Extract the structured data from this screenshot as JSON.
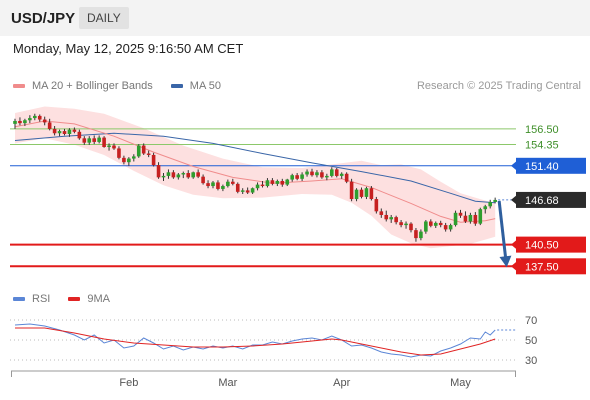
{
  "header": {
    "symbol": "USD/JPY",
    "timeframe": "DAILY"
  },
  "datetime": "Monday, May 12, 2025 9:16:50 AM CET",
  "legend_top": [
    {
      "label": "MA 20 + Bollinger Bands",
      "color": "#f08c8c"
    },
    {
      "label": "MA 50",
      "color": "#3a66a8"
    }
  ],
  "credit": "Research © 2025 Trading Central",
  "legend_bottom": [
    {
      "label": "RSI",
      "color": "#5b86d6"
    },
    {
      "label": "9MA",
      "color": "#e02424"
    }
  ],
  "colors": {
    "up": "#2e9e2e",
    "down": "#c62020",
    "resistance": "#1f5fd6",
    "support": "#e21a1a",
    "green_level": "#8cc86a",
    "arrow": "#2f5f9e"
  },
  "chart_data": [
    {
      "type": "candlestick",
      "ylim": [
        134.5,
        160.5
      ],
      "x_ticks": [
        "Feb",
        "Mar",
        "Apr",
        "May"
      ],
      "x_tick_index": [
        23,
        43,
        66,
        90
      ],
      "levels": [
        {
          "label": "156.50",
          "value": 156.5,
          "style": "green"
        },
        {
          "label": "154.35",
          "value": 154.35,
          "style": "green"
        },
        {
          "label": "151.40",
          "value": 151.4,
          "style": "resistance"
        },
        {
          "label": "146.68",
          "value": 146.68,
          "style": "last"
        },
        {
          "label": "140.50",
          "value": 140.5,
          "style": "support"
        },
        {
          "label": "137.50",
          "value": 137.5,
          "style": "support"
        }
      ],
      "ohlc": [
        [
          157.2,
          157.9,
          156.5,
          157.6
        ],
        [
          157.6,
          158.1,
          157.0,
          157.3
        ],
        [
          157.3,
          157.9,
          156.9,
          157.7
        ],
        [
          157.7,
          158.4,
          157.3,
          158.0
        ],
        [
          158.0,
          158.6,
          157.7,
          158.3
        ],
        [
          158.3,
          158.5,
          157.5,
          157.8
        ],
        [
          157.8,
          158.2,
          157.0,
          157.4
        ],
        [
          157.4,
          157.9,
          156.3,
          156.5
        ],
        [
          156.5,
          156.9,
          155.6,
          155.9
        ],
        [
          155.9,
          156.4,
          155.5,
          156.2
        ],
        [
          156.2,
          156.5,
          155.6,
          155.8
        ],
        [
          155.8,
          156.6,
          155.4,
          156.4
        ],
        [
          156.4,
          156.7,
          155.9,
          156.1
        ],
        [
          156.1,
          156.4,
          155.0,
          155.2
        ],
        [
          155.2,
          155.5,
          154.3,
          154.6
        ],
        [
          154.6,
          155.5,
          154.3,
          155.2
        ],
        [
          155.2,
          155.6,
          154.4,
          154.7
        ],
        [
          154.7,
          155.6,
          154.5,
          155.3
        ],
        [
          155.3,
          155.5,
          153.9,
          154.0
        ],
        [
          154.0,
          154.5,
          153.5,
          154.2
        ],
        [
          154.2,
          154.5,
          153.6,
          153.8
        ],
        [
          153.8,
          154.1,
          152.3,
          152.5
        ],
        [
          152.5,
          152.8,
          151.6,
          151.9
        ],
        [
          151.9,
          152.6,
          151.4,
          152.4
        ],
        [
          152.4,
          153.0,
          152.0,
          152.7
        ],
        [
          152.7,
          154.4,
          152.5,
          154.2
        ],
        [
          154.2,
          154.5,
          152.9,
          153.1
        ],
        [
          153.1,
          153.5,
          152.6,
          152.9
        ],
        [
          152.9,
          153.2,
          151.3,
          151.5
        ],
        [
          151.5,
          151.9,
          149.6,
          149.8
        ],
        [
          149.8,
          150.4,
          149.3,
          150.0
        ],
        [
          150.0,
          150.9,
          149.6,
          150.5
        ],
        [
          150.5,
          150.8,
          149.6,
          149.8
        ],
        [
          149.8,
          150.4,
          149.5,
          150.2
        ],
        [
          150.2,
          150.6,
          149.7,
          150.4
        ],
        [
          150.4,
          150.8,
          149.6,
          149.8
        ],
        [
          149.8,
          150.6,
          149.6,
          150.5
        ],
        [
          150.5,
          150.9,
          149.7,
          149.9
        ],
        [
          149.9,
          150.2,
          148.8,
          149.0
        ],
        [
          149.0,
          149.4,
          148.3,
          148.6
        ],
        [
          148.6,
          149.3,
          148.3,
          149.1
        ],
        [
          149.1,
          149.4,
          148.0,
          148.2
        ],
        [
          148.2,
          148.8,
          147.9,
          148.6
        ],
        [
          148.6,
          149.5,
          148.4,
          149.2
        ],
        [
          149.2,
          149.6,
          148.7,
          148.9
        ],
        [
          148.9,
          149.1,
          147.6,
          147.8
        ],
        [
          147.8,
          148.3,
          147.5,
          148.0
        ],
        [
          148.0,
          148.4,
          147.5,
          147.7
        ],
        [
          147.7,
          148.4,
          147.5,
          148.3
        ],
        [
          148.3,
          149.1,
          148.0,
          148.8
        ],
        [
          148.8,
          149.3,
          148.4,
          148.6
        ],
        [
          148.6,
          149.7,
          148.4,
          149.4
        ],
        [
          149.4,
          149.7,
          148.7,
          148.9
        ],
        [
          148.9,
          149.5,
          148.6,
          149.3
        ],
        [
          149.3,
          149.6,
          148.5,
          148.8
        ],
        [
          148.8,
          149.6,
          148.6,
          149.5
        ],
        [
          149.5,
          150.3,
          149.2,
          150.1
        ],
        [
          150.1,
          150.4,
          149.4,
          149.6
        ],
        [
          149.6,
          150.5,
          149.3,
          150.2
        ],
        [
          150.2,
          150.9,
          149.9,
          150.6
        ],
        [
          150.6,
          151.0,
          149.9,
          150.1
        ],
        [
          150.1,
          150.8,
          149.8,
          150.5
        ],
        [
          150.5,
          150.8,
          149.6,
          149.8
        ],
        [
          149.8,
          150.3,
          149.4,
          150.0
        ],
        [
          150.0,
          151.2,
          149.8,
          150.9
        ],
        [
          150.9,
          151.1,
          149.8,
          150.0
        ],
        [
          150.0,
          150.5,
          149.6,
          150.3
        ],
        [
          150.3,
          150.5,
          149.0,
          149.2
        ],
        [
          149.2,
          149.6,
          146.5,
          146.8
        ],
        [
          146.8,
          148.3,
          146.5,
          148.1
        ],
        [
          148.1,
          148.4,
          146.9,
          147.1
        ],
        [
          147.1,
          148.5,
          146.8,
          148.3
        ],
        [
          148.3,
          148.6,
          146.6,
          146.8
        ],
        [
          146.8,
          147.1,
          144.8,
          145.1
        ],
        [
          145.1,
          145.5,
          144.2,
          144.6
        ],
        [
          144.6,
          145.2,
          143.7,
          144.0
        ],
        [
          144.0,
          144.6,
          143.5,
          144.3
        ],
        [
          144.3,
          144.5,
          143.3,
          143.6
        ],
        [
          143.6,
          143.9,
          142.9,
          143.2
        ],
        [
          143.2,
          143.7,
          142.7,
          143.4
        ],
        [
          143.4,
          143.6,
          142.2,
          142.5
        ],
        [
          142.5,
          142.8,
          140.9,
          141.4
        ],
        [
          141.4,
          142.6,
          141.1,
          142.3
        ],
        [
          142.3,
          143.9,
          142.0,
          143.7
        ],
        [
          143.7,
          144.0,
          142.9,
          143.1
        ],
        [
          143.1,
          143.7,
          142.8,
          143.5
        ],
        [
          143.5,
          143.8,
          142.9,
          143.2
        ],
        [
          143.2,
          143.5,
          142.3,
          142.6
        ],
        [
          142.6,
          143.4,
          142.3,
          143.2
        ],
        [
          143.2,
          145.2,
          143.0,
          144.9
        ],
        [
          144.9,
          145.3,
          144.2,
          144.5
        ],
        [
          144.5,
          145.1,
          143.5,
          143.7
        ],
        [
          143.7,
          144.9,
          143.4,
          144.6
        ],
        [
          144.6,
          145.0,
          143.1,
          143.4
        ],
        [
          143.4,
          145.6,
          143.2,
          145.4
        ],
        [
          145.4,
          146.0,
          144.8,
          145.8
        ],
        [
          145.8,
          146.7,
          145.5,
          146.4
        ],
        [
          146.4,
          147.0,
          146.2,
          146.68
        ]
      ],
      "ma50": [
        [
          0,
          154.9
        ],
        [
          10,
          155.5
        ],
        [
          20,
          155.9
        ],
        [
          30,
          155.5
        ],
        [
          40,
          154.5
        ],
        [
          50,
          153.1
        ],
        [
          60,
          151.8
        ],
        [
          70,
          150.6
        ],
        [
          80,
          149.3
        ],
        [
          88,
          147.6
        ],
        [
          93,
          146.5
        ],
        [
          97,
          146.3
        ]
      ],
      "ma20": [
        [
          0,
          156.8
        ],
        [
          6,
          157.6
        ],
        [
          12,
          157.2
        ],
        [
          20,
          155.5
        ],
        [
          28,
          153.3
        ],
        [
          36,
          151.3
        ],
        [
          44,
          149.8
        ],
        [
          52,
          149.0
        ],
        [
          60,
          149.3
        ],
        [
          66,
          149.6
        ],
        [
          72,
          148.4
        ],
        [
          80,
          146.2
        ],
        [
          86,
          144.4
        ],
        [
          90,
          143.6
        ],
        [
          95,
          143.8
        ],
        [
          97,
          144.1
        ]
      ],
      "bb_upper": [
        [
          0,
          158.7
        ],
        [
          6,
          159.6
        ],
        [
          12,
          159.3
        ],
        [
          18,
          158.6
        ],
        [
          26,
          156.6
        ],
        [
          34,
          154.2
        ],
        [
          42,
          152.4
        ],
        [
          50,
          151.2
        ],
        [
          58,
          151.1
        ],
        [
          64,
          151.6
        ],
        [
          70,
          152.1
        ],
        [
          74,
          151.5
        ],
        [
          78,
          151.6
        ],
        [
          82,
          150.9
        ],
        [
          86,
          149.2
        ],
        [
          90,
          147.6
        ],
        [
          94,
          146.8
        ],
        [
          97,
          146.2
        ]
      ],
      "bb_lower": [
        [
          0,
          154.5
        ],
        [
          6,
          155.2
        ],
        [
          12,
          154.3
        ],
        [
          18,
          152.9
        ],
        [
          24,
          150.7
        ],
        [
          30,
          148.7
        ],
        [
          36,
          147.4
        ],
        [
          42,
          146.9
        ],
        [
          50,
          147.0
        ],
        [
          58,
          147.5
        ],
        [
          64,
          147.4
        ],
        [
          68,
          146.3
        ],
        [
          72,
          144.5
        ],
        [
          76,
          141.9
        ],
        [
          80,
          140.7
        ],
        [
          84,
          140.0
        ],
        [
          88,
          140.3
        ],
        [
          92,
          140.6
        ],
        [
          97,
          141.6
        ]
      ]
    },
    {
      "type": "line",
      "name": "RSI panel",
      "ylim": [
        22,
        80
      ],
      "y_ticks": [
        70,
        50,
        30
      ],
      "rsi": [
        [
          0,
          65
        ],
        [
          3,
          66
        ],
        [
          6,
          64
        ],
        [
          9,
          60
        ],
        [
          12,
          55
        ],
        [
          14,
          50
        ],
        [
          16,
          55
        ],
        [
          18,
          47
        ],
        [
          20,
          50
        ],
        [
          22,
          42
        ],
        [
          24,
          44
        ],
        [
          26,
          52
        ],
        [
          28,
          47
        ],
        [
          30,
          41
        ],
        [
          32,
          44
        ],
        [
          34,
          40
        ],
        [
          36,
          43
        ],
        [
          38,
          41
        ],
        [
          40,
          44
        ],
        [
          42,
          42
        ],
        [
          44,
          44
        ],
        [
          46,
          41
        ],
        [
          48,
          45
        ],
        [
          50,
          45
        ],
        [
          52,
          48
        ],
        [
          54,
          46
        ],
        [
          56,
          49
        ],
        [
          58,
          51
        ],
        [
          60,
          52
        ],
        [
          62,
          50
        ],
        [
          64,
          54
        ],
        [
          66,
          50
        ],
        [
          68,
          44
        ],
        [
          70,
          45
        ],
        [
          72,
          42
        ],
        [
          74,
          38
        ],
        [
          76,
          36
        ],
        [
          78,
          35
        ],
        [
          80,
          33
        ],
        [
          82,
          35
        ],
        [
          84,
          34
        ],
        [
          86,
          39
        ],
        [
          88,
          42
        ],
        [
          90,
          46
        ],
        [
          92,
          52
        ],
        [
          94,
          51
        ],
        [
          95,
          58
        ],
        [
          96,
          55
        ],
        [
          97,
          60
        ]
      ],
      "rsi_ma": [
        [
          0,
          62
        ],
        [
          6,
          62
        ],
        [
          12,
          57
        ],
        [
          18,
          51
        ],
        [
          24,
          47
        ],
        [
          30,
          45
        ],
        [
          36,
          43
        ],
        [
          42,
          43
        ],
        [
          48,
          44
        ],
        [
          54,
          46
        ],
        [
          60,
          49
        ],
        [
          64,
          51
        ],
        [
          66,
          50
        ],
        [
          70,
          46
        ],
        [
          74,
          42
        ],
        [
          78,
          38
        ],
        [
          82,
          35
        ],
        [
          86,
          36
        ],
        [
          90,
          41
        ],
        [
          94,
          46
        ],
        [
          97,
          51
        ]
      ]
    }
  ]
}
